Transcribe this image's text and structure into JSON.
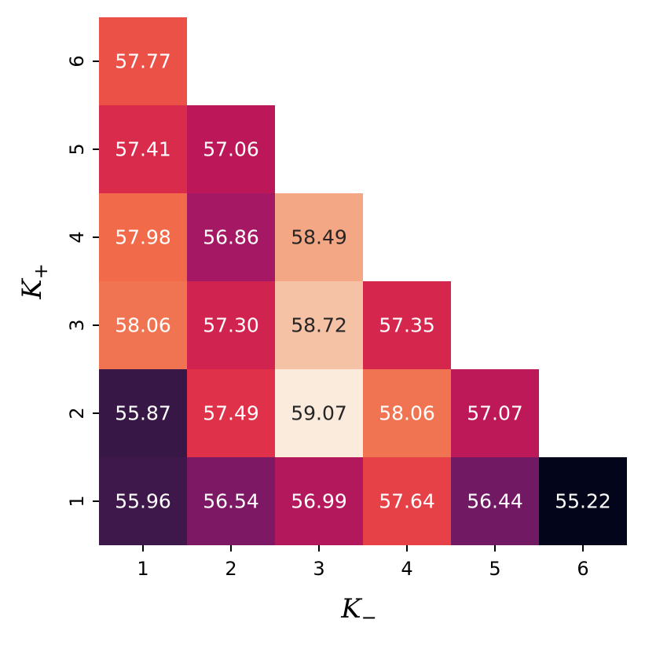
{
  "chart_data": {
    "type": "heatmap",
    "colormap": "rocket",
    "x_categories": [
      "1",
      "2",
      "3",
      "4",
      "5",
      "6"
    ],
    "y_categories": [
      "1",
      "2",
      "3",
      "4",
      "5",
      "6"
    ],
    "xlabel": {
      "base": "K",
      "sub": "−"
    },
    "ylabel": {
      "base": "K",
      "sub": "+"
    },
    "cells": [
      {
        "x": "1",
        "y": "1",
        "value": 55.96
      },
      {
        "x": "2",
        "y": "1",
        "value": 56.54
      },
      {
        "x": "3",
        "y": "1",
        "value": 56.99
      },
      {
        "x": "4",
        "y": "1",
        "value": 57.64
      },
      {
        "x": "5",
        "y": "1",
        "value": 56.44
      },
      {
        "x": "6",
        "y": "1",
        "value": 55.22
      },
      {
        "x": "1",
        "y": "2",
        "value": 55.87
      },
      {
        "x": "2",
        "y": "2",
        "value": 57.49
      },
      {
        "x": "3",
        "y": "2",
        "value": 59.07
      },
      {
        "x": "4",
        "y": "2",
        "value": 58.06
      },
      {
        "x": "5",
        "y": "2",
        "value": 57.07
      },
      {
        "x": "1",
        "y": "3",
        "value": 58.06
      },
      {
        "x": "2",
        "y": "3",
        "value": 57.3
      },
      {
        "x": "3",
        "y": "3",
        "value": 58.72
      },
      {
        "x": "4",
        "y": "3",
        "value": 57.35
      },
      {
        "x": "1",
        "y": "4",
        "value": 57.98
      },
      {
        "x": "2",
        "y": "4",
        "value": 56.86
      },
      {
        "x": "3",
        "y": "4",
        "value": 58.49
      },
      {
        "x": "1",
        "y": "5",
        "value": 57.41
      },
      {
        "x": "2",
        "y": "5",
        "value": 57.06
      },
      {
        "x": "1",
        "y": "6",
        "value": 57.77
      }
    ],
    "value_range": [
      55.22,
      59.07
    ],
    "grid": false,
    "legend": "none"
  }
}
